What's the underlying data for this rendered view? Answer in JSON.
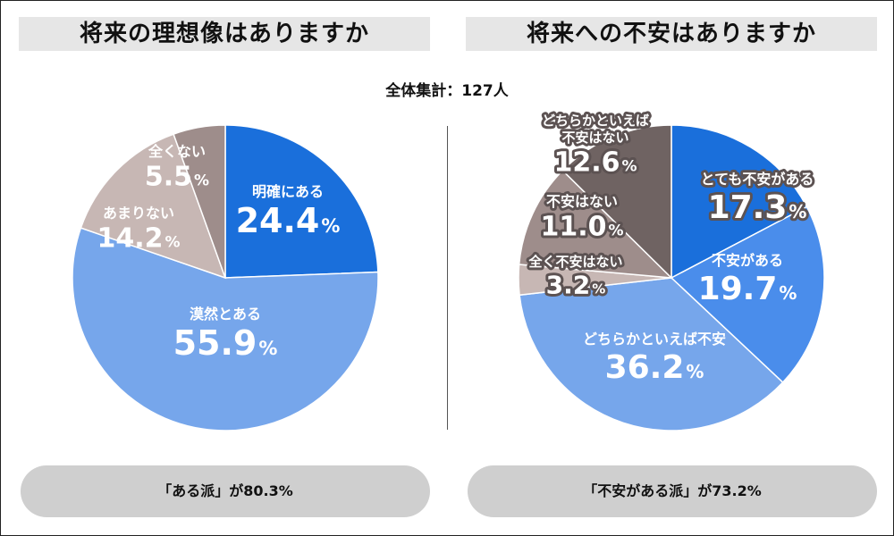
{
  "total_label": "全体集計：127人",
  "charts": [
    {
      "title": "将来の理想像はありますか",
      "summary": "「ある派」が80.3%"
    },
    {
      "title": "将来への不安はありますか",
      "summary": "「不安がある派」が73.2%"
    }
  ],
  "chart_data": [
    {
      "type": "pie",
      "title": "将来の理想像はありますか",
      "labels": [
        "明確にある",
        "漠然とある",
        "あまりない",
        "全くない"
      ],
      "values": [
        24.4,
        55.9,
        14.2,
        5.5
      ],
      "value_texts": [
        "24.4",
        "55.9",
        "14.2",
        "5.5"
      ],
      "unit": "%",
      "colors": [
        "#1a6fdb",
        "#76a6eb",
        "#c7b7b4",
        "#9e8d8b"
      ]
    },
    {
      "type": "pie",
      "title": "将来への不安はありますか",
      "labels": [
        "とても不安がある",
        "不安がある",
        "どちらかといえば不安",
        "全く不安はない",
        "不安はない",
        "どちらかといえば\n不安はない"
      ],
      "values": [
        17.3,
        19.7,
        36.2,
        3.2,
        11.0,
        12.6
      ],
      "value_texts": [
        "17.3",
        "19.7",
        "36.2",
        "3.2",
        "11.0",
        "12.6"
      ],
      "unit": "%",
      "colors": [
        "#1a6fdb",
        "#4a8deb",
        "#76a6eb",
        "#c7b7b4",
        "#9e8d8b",
        "#6f6362"
      ]
    }
  ]
}
